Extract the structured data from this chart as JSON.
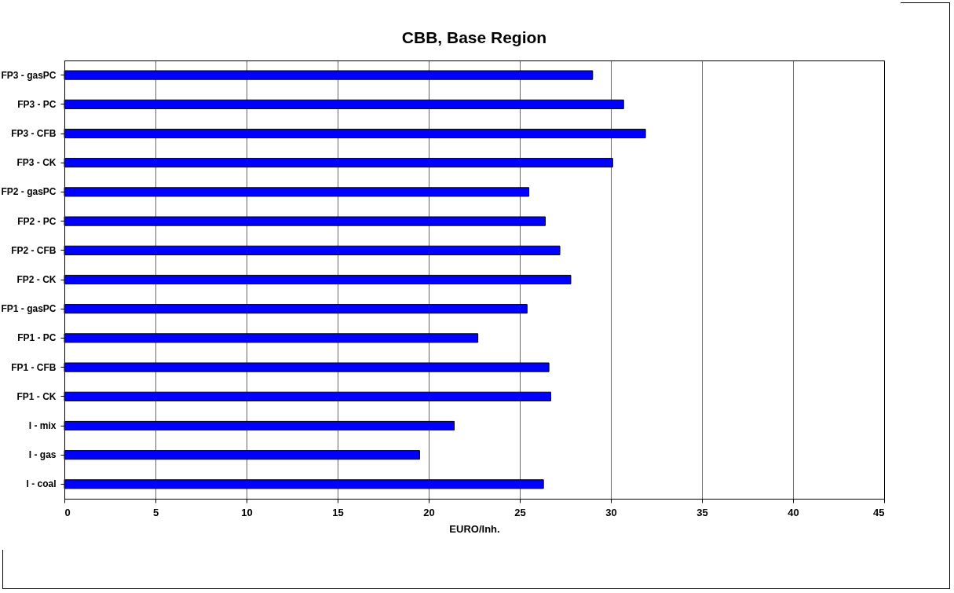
{
  "chart_data": {
    "type": "bar",
    "orientation": "horizontal",
    "title": "CBB, Base Region",
    "xlabel": "EURO/Inh.",
    "categories": [
      "FP3 - gasPC",
      "FP3 - PC",
      "FP3 - CFB",
      "FP3 - CK",
      "FP2 - gasPC",
      "FP2 - PC",
      "FP2 - CFB",
      "FP2 - CK",
      "FP1 - gasPC",
      "FP1 - PC",
      "FP1 - CFB",
      "FP1 - CK",
      "I - mix",
      "I - gas",
      "I - coal"
    ],
    "values": [
      29.0,
      30.7,
      31.9,
      30.1,
      25.5,
      26.4,
      27.2,
      27.8,
      25.4,
      22.7,
      26.6,
      26.7,
      21.4,
      19.5,
      26.3
    ],
    "color": "#0000ff",
    "xlim": [
      0,
      45
    ],
    "xticks": [
      0,
      5,
      10,
      15,
      20,
      25,
      30,
      35,
      40,
      45
    ],
    "grid": "x"
  }
}
